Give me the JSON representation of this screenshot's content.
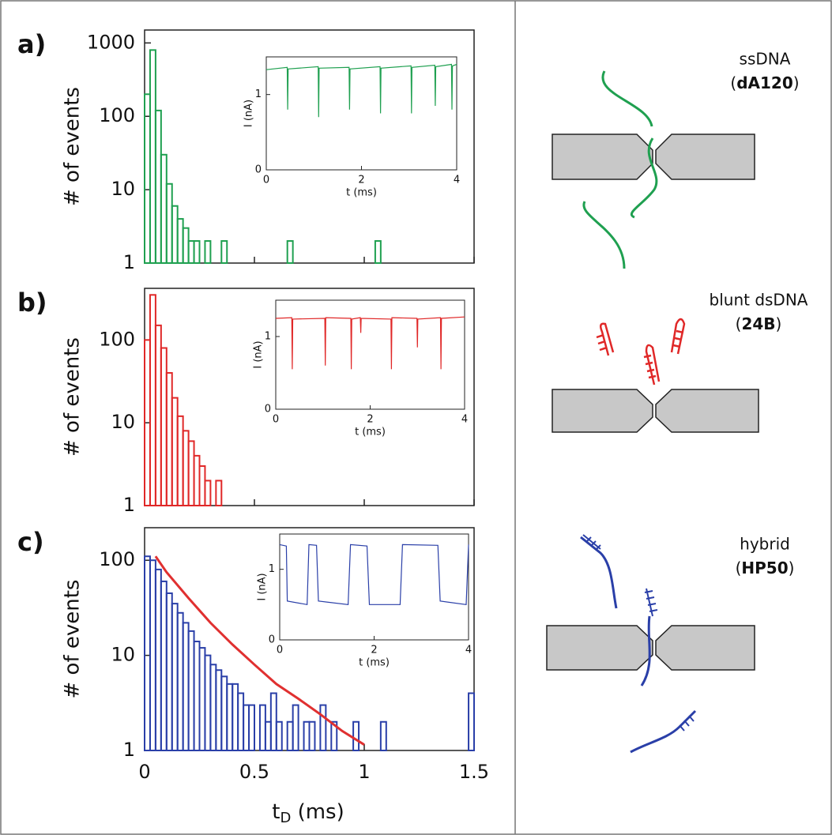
{
  "chart_data": [
    {
      "type": "histogram",
      "title": "a)",
      "ylabel": "# of events",
      "log_y": true,
      "color": "#1fa050",
      "xlim": [
        0,
        1.5
      ],
      "xticks": [
        0,
        0.5,
        1,
        1.5
      ],
      "xticklabels": false,
      "ylim": [
        1,
        1500
      ],
      "yticks": [
        1,
        10,
        100,
        1000
      ],
      "bins": [
        0,
        0.025,
        0.05,
        0.075,
        0.1,
        0.125,
        0.15,
        0.175,
        0.2,
        0.225,
        0.25,
        0.275,
        0.3,
        0.325,
        0.35,
        0.375,
        0.4,
        0.425,
        0.45,
        0.475,
        0.5,
        0.525,
        0.55,
        0.575,
        0.6,
        0.625,
        0.65,
        0.675,
        0.7,
        0.725,
        0.75,
        0.775,
        0.8,
        0.825,
        0.85,
        0.875,
        0.9,
        0.925,
        0.95,
        0.975,
        1,
        1.025,
        1.05,
        1.075,
        1.1,
        1.125,
        1.15,
        1.175,
        1.2,
        1.225,
        1.25,
        1.275,
        1.3,
        1.325,
        1.35,
        1.375,
        1.4,
        1.425,
        1.45,
        1.475,
        1.5
      ],
      "values": [
        200,
        800,
        120,
        30,
        12,
        6,
        4,
        3,
        2,
        2,
        1,
        2,
        1,
        0,
        2,
        1,
        0,
        1,
        1,
        0,
        0,
        0,
        0,
        0,
        0,
        0,
        2,
        0,
        0,
        0,
        0,
        0,
        0,
        0,
        0,
        0,
        0,
        0,
        0,
        0,
        0,
        0,
        2,
        0,
        0,
        0,
        0,
        0,
        0,
        0,
        0,
        0,
        0,
        0,
        0,
        0,
        0,
        0,
        0,
        0
      ],
      "inset": {
        "type": "line",
        "xlabel": "t (ms)",
        "ylabel": "I (nA)",
        "color": "#1fa050",
        "xlim": [
          0,
          4
        ],
        "xticks": [
          0,
          2,
          4
        ],
        "ylim": [
          0,
          1.5
        ],
        "yticks": [
          0,
          1
        ],
        "x": [
          0,
          0.44,
          0.45,
          0.46,
          1.09,
          1.1,
          1.11,
          1.74,
          1.75,
          1.76,
          2.39,
          2.4,
          2.41,
          3.04,
          3.05,
          3.06,
          3.54,
          3.55,
          3.56,
          3.89,
          3.9,
          3.91,
          4
        ],
        "values": [
          1.33,
          1.36,
          0.8,
          1.34,
          1.37,
          0.7,
          1.35,
          1.36,
          0.8,
          1.34,
          1.37,
          0.75,
          1.35,
          1.38,
          0.75,
          1.36,
          1.39,
          0.85,
          1.37,
          1.4,
          0.8,
          1.38,
          1.4
        ]
      }
    },
    {
      "type": "histogram",
      "title": "b)",
      "ylabel": "# of events",
      "log_y": true,
      "color": "#e02828",
      "xlim": [
        0,
        1.5
      ],
      "xticks": [
        0,
        0.5,
        1,
        1.5
      ],
      "xticklabels": false,
      "ylim": [
        1,
        420
      ],
      "yticks": [
        1,
        10,
        100
      ],
      "bins": [
        0,
        0.025,
        0.05,
        0.075,
        0.1,
        0.125,
        0.15,
        0.175,
        0.2,
        0.225,
        0.25,
        0.275,
        0.3,
        0.325,
        0.35,
        0.375,
        0.4,
        0.425,
        0.45,
        0.475,
        0.5,
        0.525,
        0.55,
        0.575,
        0.6,
        0.625,
        0.65,
        0.675,
        0.7,
        0.725,
        0.75,
        0.775,
        0.8,
        0.825,
        0.85,
        0.875,
        0.9,
        0.925,
        0.95,
        0.975,
        1,
        1.025,
        1.05,
        1.075,
        1.1,
        1.125,
        1.15,
        1.175,
        1.2,
        1.225,
        1.25,
        1.275,
        1.3,
        1.325,
        1.35,
        1.375,
        1.4,
        1.425,
        1.45,
        1.475,
        1.5
      ],
      "values": [
        100,
        350,
        150,
        80,
        40,
        20,
        12,
        8,
        6,
        4,
        3,
        2,
        1,
        2,
        1,
        0,
        0,
        0,
        0,
        0,
        0,
        0,
        0,
        0,
        0,
        0,
        0,
        0,
        0,
        0,
        0,
        0,
        0,
        0,
        0,
        0,
        0,
        0,
        0,
        0,
        0,
        0,
        0,
        0,
        0,
        0,
        0,
        0,
        0,
        0,
        0,
        0,
        0,
        0,
        0,
        0,
        0,
        0,
        0,
        0
      ],
      "inset": {
        "type": "line",
        "xlabel": "t (ms)",
        "ylabel": "I (nA)",
        "color": "#e02828",
        "xlim": [
          0,
          4
        ],
        "xticks": [
          0,
          2,
          4
        ],
        "ylim": [
          0,
          1.5
        ],
        "yticks": [
          0,
          1
        ],
        "x": [
          0,
          0.34,
          0.35,
          0.36,
          1.04,
          1.05,
          1.06,
          1.59,
          1.6,
          1.61,
          1.79,
          1.8,
          1.81,
          2.44,
          2.45,
          2.46,
          2.99,
          3,
          3.01,
          3.49,
          3.5,
          3.51,
          4
        ],
        "values": [
          1.25,
          1.26,
          0.55,
          1.24,
          1.25,
          0.6,
          1.26,
          1.25,
          0.55,
          1.24,
          1.26,
          1.05,
          1.25,
          1.24,
          0.55,
          1.26,
          1.25,
          0.85,
          1.24,
          1.26,
          0.55,
          1.25,
          1.27
        ]
      }
    },
    {
      "type": "histogram",
      "title": "c)",
      "ylabel": "# of events",
      "log_y": true,
      "color": "#2a3fa8",
      "xlabel_parts": [
        "t",
        "D",
        " (ms)"
      ],
      "xlim": [
        0,
        1.5
      ],
      "xticks": [
        0,
        0.5,
        1,
        1.5
      ],
      "xticklabels": true,
      "ylim": [
        1,
        220
      ],
      "yticks": [
        1,
        10,
        100
      ],
      "bins": [
        0,
        0.025,
        0.05,
        0.075,
        0.1,
        0.125,
        0.15,
        0.175,
        0.2,
        0.225,
        0.25,
        0.275,
        0.3,
        0.325,
        0.35,
        0.375,
        0.4,
        0.425,
        0.45,
        0.475,
        0.5,
        0.525,
        0.55,
        0.575,
        0.6,
        0.625,
        0.65,
        0.675,
        0.7,
        0.725,
        0.75,
        0.775,
        0.8,
        0.825,
        0.85,
        0.875,
        0.9,
        0.925,
        0.95,
        0.975,
        1,
        1.025,
        1.05,
        1.075,
        1.1,
        1.125,
        1.15,
        1.175,
        1.2,
        1.225,
        1.25,
        1.275,
        1.3,
        1.325,
        1.35,
        1.375,
        1.4,
        1.425,
        1.45,
        1.475,
        1.5
      ],
      "values": [
        110,
        100,
        80,
        60,
        45,
        35,
        28,
        22,
        18,
        14,
        12,
        10,
        8,
        7,
        6,
        5,
        5,
        4,
        3,
        3,
        1,
        3,
        2,
        4,
        2,
        1,
        2,
        3,
        1,
        2,
        2,
        1,
        3,
        1,
        2,
        1,
        1,
        0,
        2,
        1,
        1,
        0,
        1,
        2,
        1,
        1,
        0,
        1,
        0,
        0,
        1,
        1,
        0,
        1,
        0,
        0,
        1,
        1,
        0,
        4
      ],
      "fit": {
        "color": "#e03030",
        "x": [
          0.05,
          0.1,
          0.2,
          0.3,
          0.4,
          0.5,
          0.6,
          0.7,
          0.8,
          0.9,
          1.0
        ],
        "values": [
          110,
          75,
          40,
          22,
          13,
          8,
          5,
          3.5,
          2.4,
          1.6,
          1.15
        ]
      },
      "inset": {
        "type": "line",
        "xlabel": "t (ms)",
        "ylabel": "I (nA)",
        "color": "#2a3fa8",
        "xlim": [
          0,
          4
        ],
        "xticks": [
          0,
          2,
          4
        ],
        "ylim": [
          0,
          1.5
        ],
        "yticks": [
          0,
          1
        ],
        "x": [
          0,
          0.14,
          0.16,
          0.58,
          0.62,
          0.78,
          0.82,
          1.45,
          1.5,
          1.85,
          1.9,
          2.55,
          2.6,
          3.35,
          3.4,
          3.95,
          4
        ],
        "values": [
          1.35,
          1.33,
          0.55,
          0.5,
          1.35,
          1.34,
          0.55,
          0.5,
          1.35,
          1.33,
          0.5,
          0.5,
          1.35,
          1.34,
          0.55,
          0.5,
          1.35
        ]
      }
    }
  ],
  "diagrams": [
    {
      "label": "ssDNA",
      "sample": [
        "(",
        "dA120",
        ")"
      ]
    },
    {
      "label": "blunt dsDNA",
      "sample": [
        "(",
        "24B",
        ")"
      ]
    },
    {
      "label": "hybrid",
      "sample": [
        "(",
        "HP50",
        ")"
      ]
    }
  ]
}
